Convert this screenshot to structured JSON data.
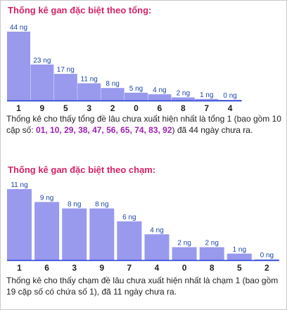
{
  "colors": {
    "title": "#d4226a",
    "bar": "#9999ee",
    "bar_label": "#1c44a8",
    "highlight": "#9b1fb0",
    "baseline": "#1e3cd7"
  },
  "section1": {
    "title": "Thống kê gan đặc biệt theo tổng:",
    "desc_pre": "Thống kê cho thấy tổng đề lâu chưa xuất hiện nhất là tổng 1 (bao gồm 10 cặp số: ",
    "desc_highlight": "01, 10, 29, 38, 47, 56, 65, 74, 83, 92",
    "desc_post": ") đã 44 ngày chưa ra."
  },
  "section2": {
    "title": "Thống kê gan đặc biệt theo chạm:",
    "desc": "Thống kê cho thấy chạm đề lâu chưa xuất hiện nhất là chạm 1 (bao gồm 19 cặp số có chứa số 1), đã 11 ngày chưa ra."
  },
  "chart_data": [
    {
      "type": "bar",
      "title": "Thống kê gan đặc biệt theo tổng:",
      "categories": [
        "1",
        "9",
        "5",
        "3",
        "2",
        "0",
        "6",
        "8",
        "7",
        "4"
      ],
      "values": [
        44,
        23,
        17,
        11,
        8,
        5,
        4,
        2,
        1,
        0
      ],
      "labels": [
        "44 ng",
        "23 ng",
        "17 ng",
        "11 ng",
        "8 ng",
        "5 ng",
        "4 ng",
        "2 ng",
        "1 ng",
        "0 ng"
      ],
      "ylim": [
        0,
        44
      ],
      "grid": false
    },
    {
      "type": "bar",
      "title": "Thống kê gan đặc biệt theo chạm:",
      "categories": [
        "1",
        "6",
        "3",
        "9",
        "7",
        "4",
        "0",
        "8",
        "5",
        "2"
      ],
      "values": [
        11,
        9,
        8,
        8,
        6,
        4,
        2,
        2,
        1,
        0
      ],
      "labels": [
        "11 ng",
        "9 ng",
        "8 ng",
        "8 ng",
        "6 ng",
        "4 ng",
        "2 ng",
        "2 ng",
        "1 ng",
        "0 ng"
      ],
      "ylim": [
        0,
        11
      ],
      "grid": false
    }
  ]
}
